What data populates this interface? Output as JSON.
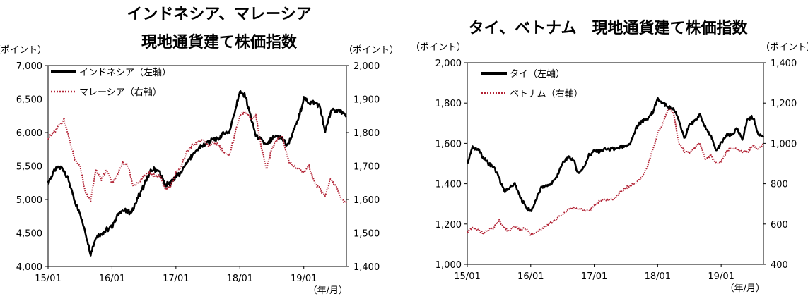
{
  "chart_data": [
    {
      "type": "line",
      "title_lines": [
        "インドネシア、マレーシア",
        "現地通貨建て株価指数"
      ],
      "left_unit": "（ポイント）",
      "right_unit": "（ポイント）",
      "x_unit": "（年/月）",
      "x_ticks": [
        "15/01",
        "16/01",
        "17/01",
        "18/01",
        "19/01"
      ],
      "left_ylim": [
        4000,
        7000
      ],
      "right_ylim": [
        1400,
        2000
      ],
      "left_ticks": [
        "4,000",
        "4,500",
        "5,000",
        "5,500",
        "6,000",
        "6,500",
        "7,000"
      ],
      "right_ticks": [
        "1,400",
        "1,500",
        "1,600",
        "1,700",
        "1,800",
        "1,900",
        "2,000"
      ],
      "legend_position": "top-left",
      "series": [
        {
          "name": "インドネシア（左軸）",
          "axis": "left",
          "color": "#000000",
          "style": "solid",
          "points": [
            [
              "15/01",
              5250
            ],
            [
              "15/02",
              5400
            ],
            [
              "15/03",
              5480
            ],
            [
              "15/04",
              5450
            ],
            [
              "15/05",
              5250
            ],
            [
              "15/06",
              4950
            ],
            [
              "15/07",
              4800
            ],
            [
              "15/08",
              4500
            ],
            [
              "15/09",
              4200
            ],
            [
              "15/10",
              4450
            ],
            [
              "15/11",
              4500
            ],
            [
              "15/12",
              4550
            ],
            [
              "16/01",
              4600
            ],
            [
              "16/02",
              4750
            ],
            [
              "16/03",
              4850
            ],
            [
              "16/04",
              4800
            ],
            [
              "16/05",
              4850
            ],
            [
              "16/06",
              5050
            ],
            [
              "16/07",
              5200
            ],
            [
              "16/08",
              5400
            ],
            [
              "16/09",
              5450
            ],
            [
              "16/10",
              5400
            ],
            [
              "16/11",
              5200
            ],
            [
              "16/12",
              5250
            ],
            [
              "17/01",
              5350
            ],
            [
              "17/02",
              5400
            ],
            [
              "17/03",
              5550
            ],
            [
              "17/04",
              5650
            ],
            [
              "17/05",
              5750
            ],
            [
              "17/06",
              5800
            ],
            [
              "17/07",
              5850
            ],
            [
              "17/08",
              5900
            ],
            [
              "17/09",
              5900
            ],
            [
              "17/10",
              6000
            ],
            [
              "17/11",
              6000
            ],
            [
              "17/12",
              6300
            ],
            [
              "18/01",
              6600
            ],
            [
              "18/02",
              6550
            ],
            [
              "18/03",
              6250
            ],
            [
              "18/04",
              5950
            ],
            [
              "18/05",
              5900
            ],
            [
              "18/06",
              5800
            ],
            [
              "18/07",
              5900
            ],
            [
              "18/08",
              5950
            ],
            [
              "18/09",
              5900
            ],
            [
              "18/10",
              5800
            ],
            [
              "18/11",
              6000
            ],
            [
              "18/12",
              6200
            ],
            [
              "19/01",
              6500
            ],
            [
              "19/02",
              6450
            ],
            [
              "19/03",
              6450
            ],
            [
              "19/04",
              6400
            ],
            [
              "19/05",
              6000
            ],
            [
              "19/06",
              6300
            ],
            [
              "19/07",
              6350
            ],
            [
              "19/08",
              6300
            ],
            [
              "19/09",
              6250
            ]
          ]
        },
        {
          "name": "マレーシア（右軸）",
          "axis": "right",
          "color": "#b22234",
          "style": "dotted",
          "points": [
            [
              "15/01",
              1780
            ],
            [
              "15/02",
              1800
            ],
            [
              "15/03",
              1820
            ],
            [
              "15/04",
              1840
            ],
            [
              "15/05",
              1780
            ],
            [
              "15/06",
              1720
            ],
            [
              "15/07",
              1700
            ],
            [
              "15/08",
              1620
            ],
            [
              "15/09",
              1600
            ],
            [
              "15/10",
              1690
            ],
            [
              "15/11",
              1660
            ],
            [
              "15/12",
              1690
            ],
            [
              "16/01",
              1650
            ],
            [
              "16/02",
              1670
            ],
            [
              "16/03",
              1710
            ],
            [
              "16/04",
              1700
            ],
            [
              "16/05",
              1640
            ],
            [
              "16/06",
              1650
            ],
            [
              "16/07",
              1670
            ],
            [
              "16/08",
              1680
            ],
            [
              "16/09",
              1670
            ],
            [
              "16/10",
              1670
            ],
            [
              "16/11",
              1630
            ],
            [
              "16/12",
              1640
            ],
            [
              "17/01",
              1680
            ],
            [
              "17/02",
              1700
            ],
            [
              "17/03",
              1740
            ],
            [
              "17/04",
              1760
            ],
            [
              "17/05",
              1770
            ],
            [
              "17/06",
              1780
            ],
            [
              "17/07",
              1760
            ],
            [
              "17/08",
              1770
            ],
            [
              "17/09",
              1760
            ],
            [
              "17/10",
              1740
            ],
            [
              "17/11",
              1730
            ],
            [
              "17/12",
              1790
            ],
            [
              "18/01",
              1850
            ],
            [
              "18/02",
              1860
            ],
            [
              "18/03",
              1840
            ],
            [
              "18/04",
              1850
            ],
            [
              "18/05",
              1760
            ],
            [
              "18/06",
              1690
            ],
            [
              "18/07",
              1750
            ],
            [
              "18/08",
              1780
            ],
            [
              "18/09",
              1790
            ],
            [
              "18/10",
              1720
            ],
            [
              "18/11",
              1700
            ],
            [
              "18/12",
              1690
            ],
            [
              "19/01",
              1680
            ],
            [
              "19/02",
              1700
            ],
            [
              "19/03",
              1650
            ],
            [
              "19/04",
              1630
            ],
            [
              "19/05",
              1610
            ],
            [
              "19/06",
              1660
            ],
            [
              "19/07",
              1640
            ],
            [
              "19/08",
              1600
            ],
            [
              "19/09",
              1590
            ]
          ]
        }
      ]
    },
    {
      "type": "line",
      "title_lines": [
        "タイ、ベトナム　現地通貨建て株価指数"
      ],
      "left_unit": "（ポイント）",
      "right_unit": "（ポイント）",
      "x_unit": "（年/月）",
      "x_ticks": [
        "15/01",
        "16/01",
        "17/01",
        "18/01",
        "19/01"
      ],
      "left_ylim": [
        1000,
        2000
      ],
      "right_ylim": [
        400,
        1400
      ],
      "left_ticks": [
        "1,000",
        "1,200",
        "1,400",
        "1,600",
        "1,800",
        "2,000"
      ],
      "right_ticks": [
        "400",
        "600",
        "800",
        "1,000",
        "1,200",
        "1,400"
      ],
      "legend_position": "top-left",
      "series": [
        {
          "name": "タイ（左軸）",
          "axis": "left",
          "color": "#000000",
          "style": "solid",
          "points": [
            [
              "15/01",
              1500
            ],
            [
              "15/02",
              1580
            ],
            [
              "15/03",
              1570
            ],
            [
              "15/04",
              1530
            ],
            [
              "15/05",
              1500
            ],
            [
              "15/06",
              1480
            ],
            [
              "15/07",
              1430
            ],
            [
              "15/08",
              1360
            ],
            [
              "15/09",
              1380
            ],
            [
              "15/10",
              1400
            ],
            [
              "15/11",
              1330
            ],
            [
              "15/12",
              1290
            ],
            [
              "16/01",
              1260
            ],
            [
              "16/02",
              1320
            ],
            [
              "16/03",
              1380
            ],
            [
              "16/04",
              1390
            ],
            [
              "16/05",
              1400
            ],
            [
              "16/06",
              1440
            ],
            [
              "16/07",
              1500
            ],
            [
              "16/08",
              1530
            ],
            [
              "16/09",
              1520
            ],
            [
              "16/10",
              1450
            ],
            [
              "16/11",
              1480
            ],
            [
              "16/12",
              1540
            ],
            [
              "17/01",
              1560
            ],
            [
              "17/02",
              1560
            ],
            [
              "17/03",
              1570
            ],
            [
              "17/04",
              1570
            ],
            [
              "17/05",
              1570
            ],
            [
              "17/06",
              1580
            ],
            [
              "17/07",
              1580
            ],
            [
              "17/08",
              1610
            ],
            [
              "17/09",
              1680
            ],
            [
              "17/10",
              1710
            ],
            [
              "17/11",
              1720
            ],
            [
              "17/12",
              1750
            ],
            [
              "18/01",
              1820
            ],
            [
              "18/02",
              1800
            ],
            [
              "18/03",
              1780
            ],
            [
              "18/04",
              1770
            ],
            [
              "18/05",
              1720
            ],
            [
              "18/06",
              1620
            ],
            [
              "18/07",
              1690
            ],
            [
              "18/08",
              1710
            ],
            [
              "18/09",
              1740
            ],
            [
              "18/10",
              1680
            ],
            [
              "18/11",
              1640
            ],
            [
              "18/12",
              1560
            ],
            [
              "19/01",
              1600
            ],
            [
              "19/02",
              1640
            ],
            [
              "19/03",
              1640
            ],
            [
              "19/04",
              1670
            ],
            [
              "19/05",
              1620
            ],
            [
              "19/06",
              1720
            ],
            [
              "19/07",
              1730
            ],
            [
              "19/08",
              1650
            ],
            [
              "19/09",
              1630
            ]
          ]
        },
        {
          "name": "ベトナム（右軸）",
          "axis": "right",
          "color": "#b22234",
          "style": "dotted",
          "points": [
            [
              "15/01",
              560
            ],
            [
              "15/02",
              580
            ],
            [
              "15/03",
              570
            ],
            [
              "15/04",
              555
            ],
            [
              "15/05",
              570
            ],
            [
              "15/06",
              580
            ],
            [
              "15/07",
              620
            ],
            [
              "15/08",
              580
            ],
            [
              "15/09",
              565
            ],
            [
              "15/10",
              590
            ],
            [
              "15/11",
              570
            ],
            [
              "15/12",
              580
            ],
            [
              "16/01",
              545
            ],
            [
              "16/02",
              560
            ],
            [
              "16/03",
              570
            ],
            [
              "16/04",
              595
            ],
            [
              "16/05",
              610
            ],
            [
              "16/06",
              630
            ],
            [
              "16/07",
              650
            ],
            [
              "16/08",
              670
            ],
            [
              "16/09",
              680
            ],
            [
              "16/10",
              675
            ],
            [
              "16/11",
              670
            ],
            [
              "16/12",
              665
            ],
            [
              "17/01",
              690
            ],
            [
              "17/02",
              710
            ],
            [
              "17/03",
              720
            ],
            [
              "17/04",
              720
            ],
            [
              "17/05",
              730
            ],
            [
              "17/06",
              760
            ],
            [
              "17/07",
              780
            ],
            [
              "17/08",
              790
            ],
            [
              "17/09",
              810
            ],
            [
              "17/10",
              830
            ],
            [
              "17/11",
              880
            ],
            [
              "17/12",
              960
            ],
            [
              "18/01",
              1050
            ],
            [
              "18/02",
              1100
            ],
            [
              "18/03",
              1170
            ],
            [
              "18/04",
              1150
            ],
            [
              "18/05",
              1000
            ],
            [
              "18/06",
              960
            ],
            [
              "18/07",
              950
            ],
            [
              "18/08",
              980
            ],
            [
              "18/09",
              1000
            ],
            [
              "18/10",
              920
            ],
            [
              "18/11",
              940
            ],
            [
              "18/12",
              900
            ],
            [
              "19/01",
              910
            ],
            [
              "19/02",
              960
            ],
            [
              "19/03",
              980
            ],
            [
              "19/04",
              970
            ],
            [
              "19/05",
              960
            ],
            [
              "19/06",
              960
            ],
            [
              "19/07",
              990
            ],
            [
              "19/08",
              970
            ],
            [
              "19/09",
              1000
            ]
          ]
        }
      ]
    }
  ]
}
